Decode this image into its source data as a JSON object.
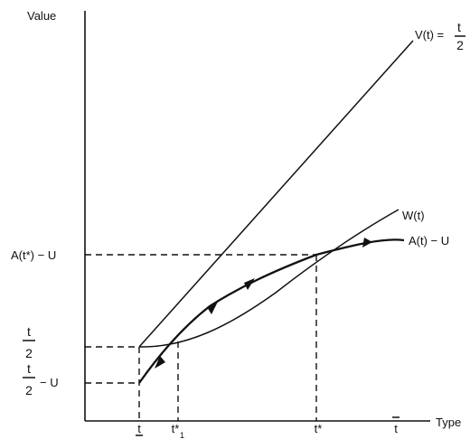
{
  "axes": {
    "y_label": "Value",
    "x_label": "Type"
  },
  "curves": {
    "V": "V(t) = ",
    "V_frac_num": "t",
    "V_frac_den": "2",
    "W": "W(t)",
    "A": "A(t) − U"
  },
  "y_ticks": {
    "upper": "A(t*) − U",
    "mid_num": "t",
    "mid_den": "2",
    "low_num": "t",
    "low_den": "2",
    "low_suffix": "− U"
  },
  "x_ticks": {
    "t_low": "t",
    "t1_star": "t*",
    "t1_sub": "1",
    "t_star": "t*",
    "t_high": "t"
  }
}
